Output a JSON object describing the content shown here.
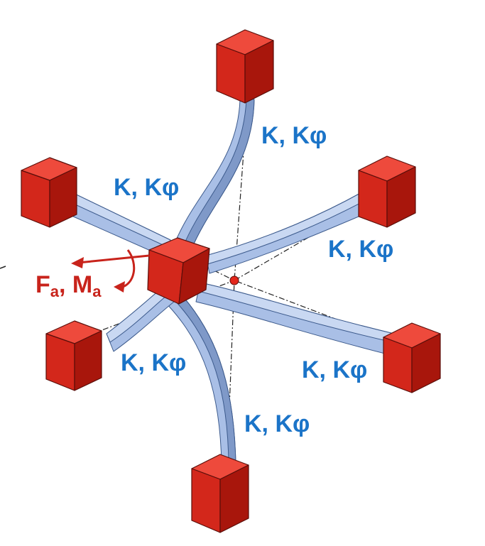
{
  "labels": {
    "stiffness": "K, K",
    "stiffness_phi": "φ",
    "load_f": "F",
    "load_f_sub": "a",
    "load_sep": ", M",
    "load_m_sub": "a"
  },
  "colors": {
    "cube_red": "#d3271b",
    "beam_blue": "#a9bfe6",
    "label_blue": "#1b74c8",
    "label_red": "#c8231b"
  }
}
